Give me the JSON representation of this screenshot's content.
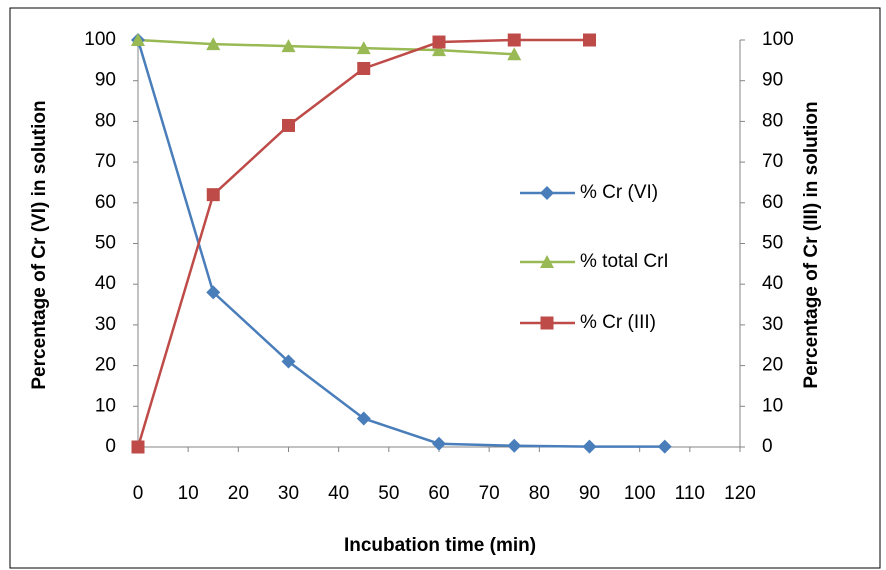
{
  "chart_data": {
    "type": "line",
    "x_label": "Incubation time (min)",
    "y_label": "Percentage of Cr (VI) in solution",
    "y2_label": "Percentage of Cr (III) in solution",
    "xlim": [
      0,
      120
    ],
    "xticks": [
      0,
      10,
      20,
      30,
      40,
      50,
      60,
      70,
      80,
      90,
      100,
      110,
      120
    ],
    "ylim": [
      0,
      100
    ],
    "yticks": [
      0,
      10,
      20,
      30,
      40,
      50,
      60,
      70,
      80,
      90,
      100
    ],
    "y2lim": [
      0,
      100
    ],
    "y2ticks": [
      0,
      10,
      20,
      30,
      40,
      50,
      60,
      70,
      80,
      90,
      100
    ],
    "grid": false,
    "series": [
      {
        "name": "% Cr (VI)",
        "color": "#4a7ebb",
        "marker": "diamond",
        "x": [
          0,
          15,
          30,
          45,
          60,
          75,
          90,
          105
        ],
        "values": [
          100,
          38,
          21,
          7,
          0.8,
          0.3,
          0.1,
          0.1
        ]
      },
      {
        "name": "% total CrI",
        "color": "#98b954",
        "marker": "triangle",
        "x": [
          0,
          15,
          30,
          45,
          60,
          75
        ],
        "values": [
          100,
          99,
          98.5,
          98,
          97.5,
          96.5
        ]
      },
      {
        "name": "% Cr (III)",
        "color": "#be4b48",
        "marker": "square",
        "axis": "y2",
        "x": [
          0,
          15,
          30,
          45,
          60,
          75,
          90
        ],
        "values": [
          0,
          62,
          79,
          93,
          99.5,
          100,
          100
        ]
      }
    ]
  }
}
